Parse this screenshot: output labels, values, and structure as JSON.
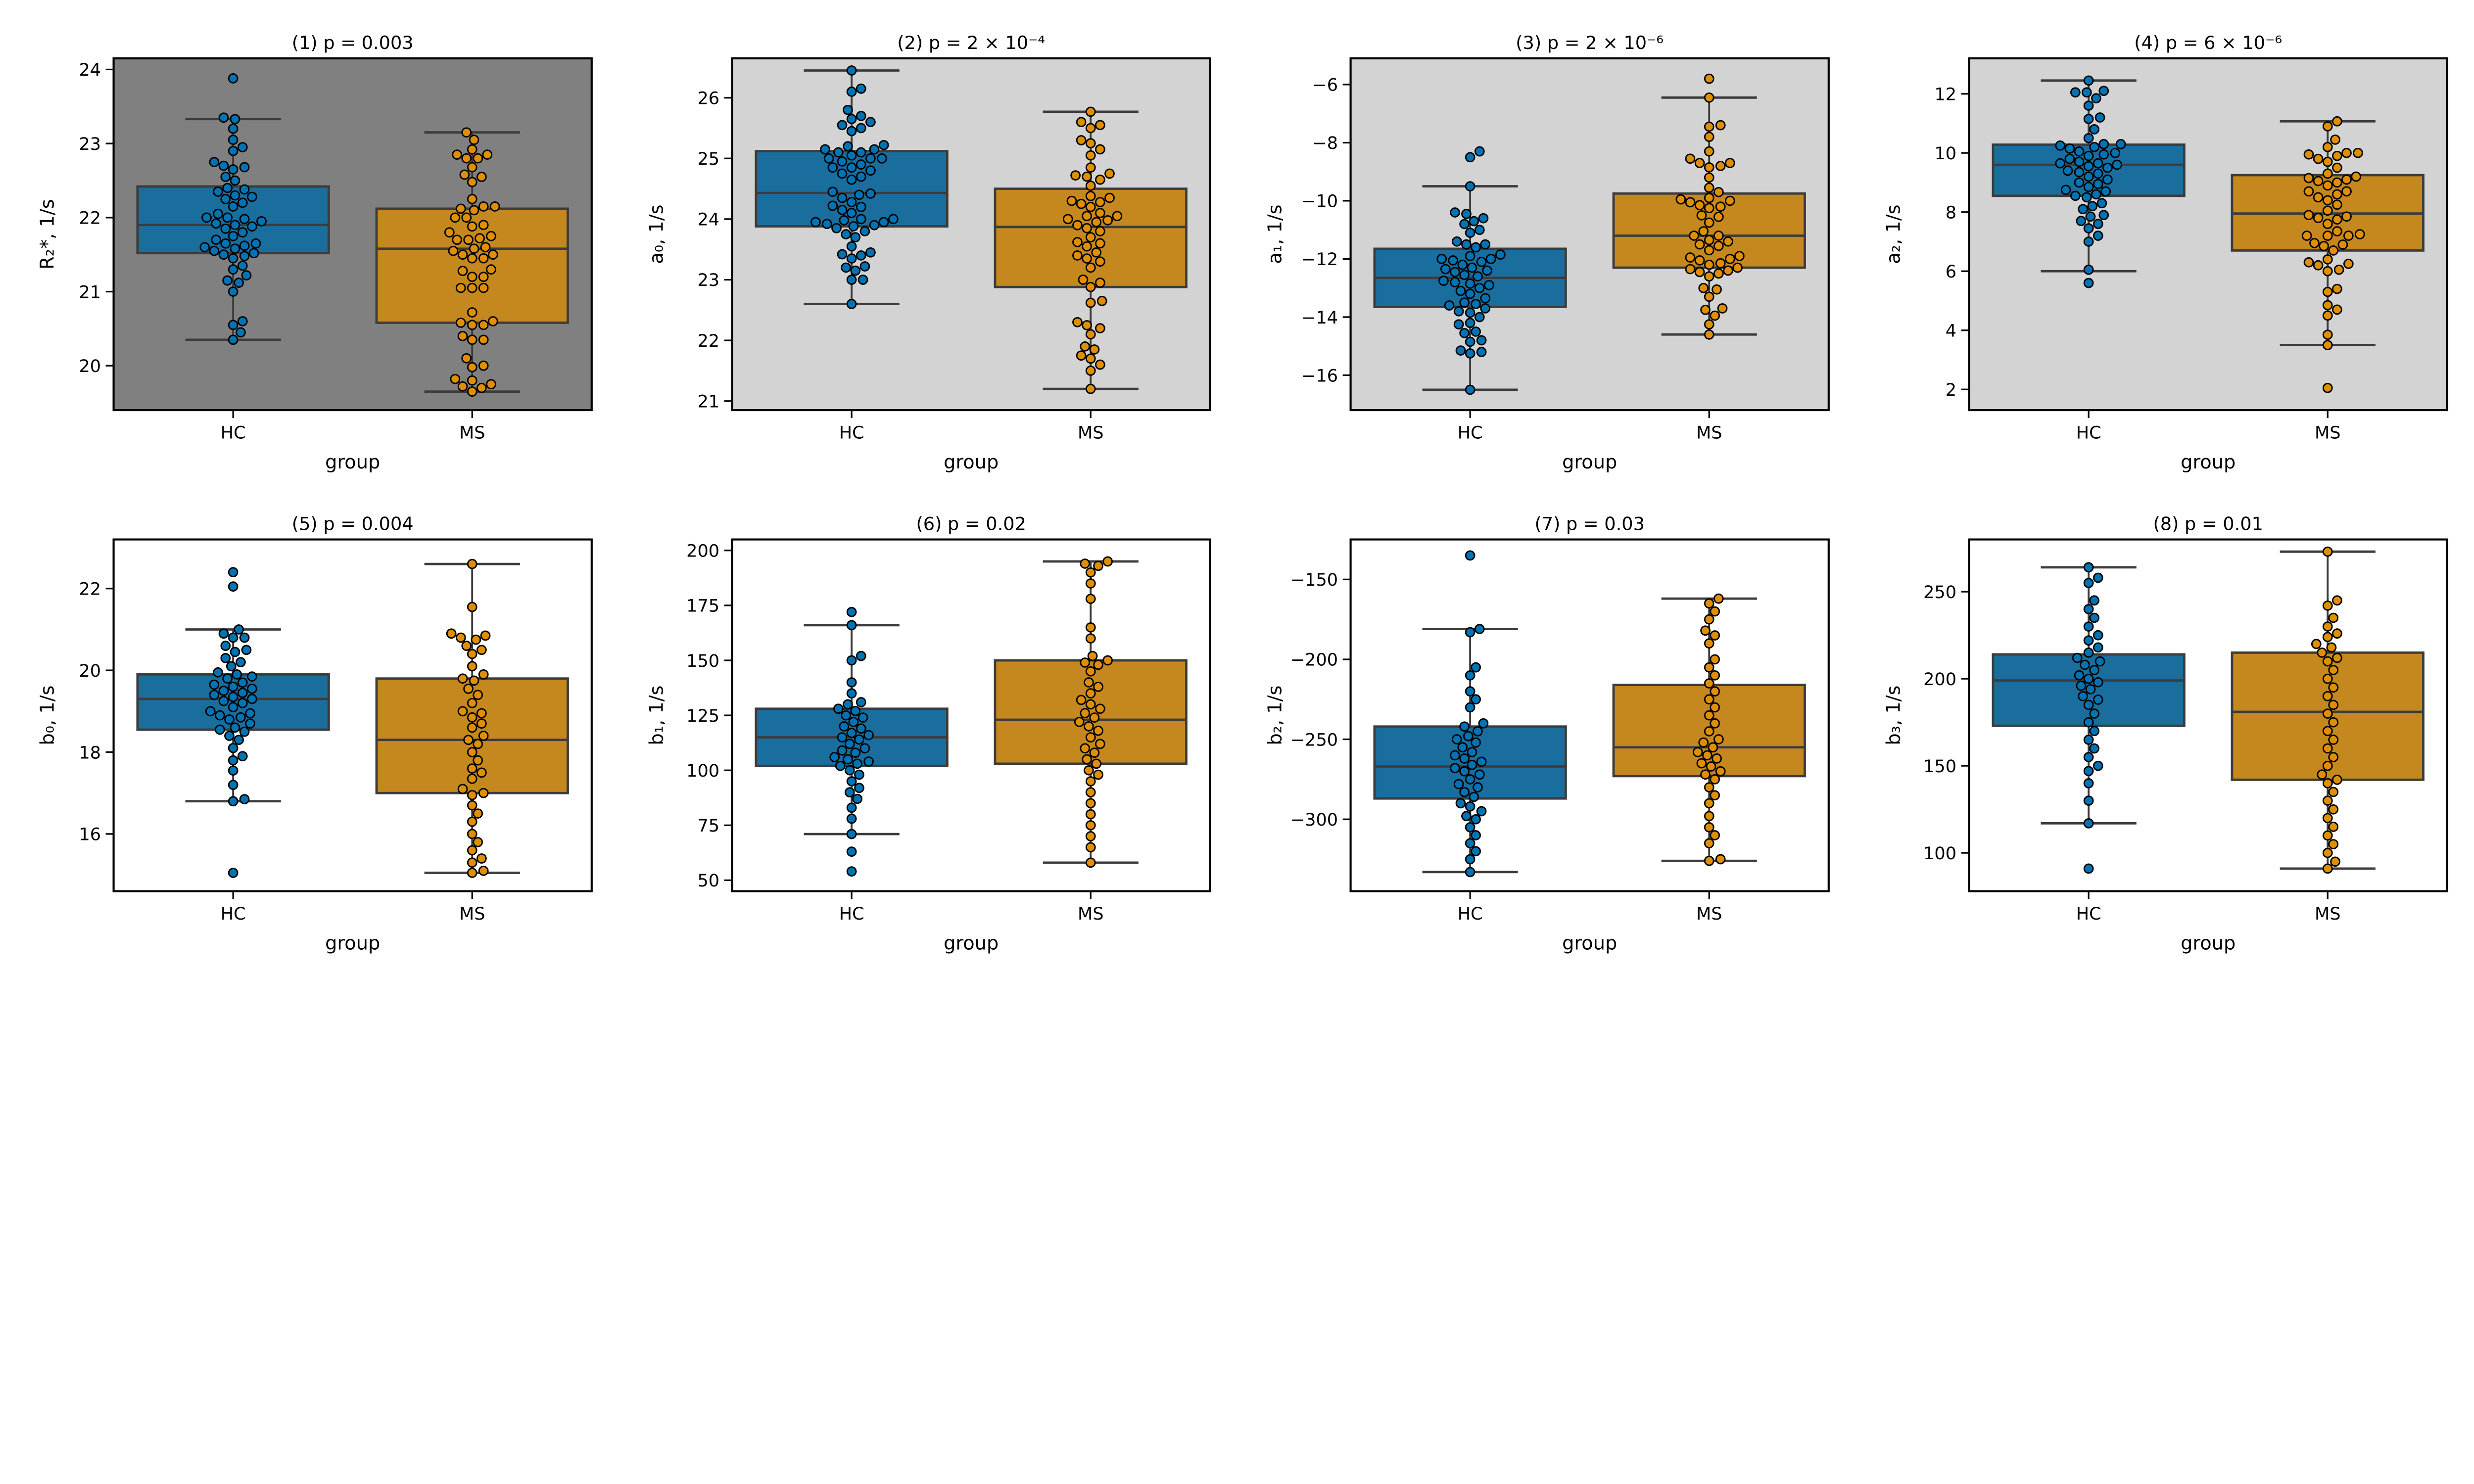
{
  "chart_data": [
    {
      "type": "box",
      "title": "(1) p = 0.003",
      "xlabel": "group",
      "ylabel": "R₂*, 1/s",
      "categories": [
        "HC",
        "MS"
      ],
      "ylim": [
        19.4,
        24.15
      ],
      "yticks": [
        20,
        21,
        22,
        23,
        24
      ],
      "background": "#808080",
      "boxes": [
        {
          "whislo": 20.35,
          "q1": 21.52,
          "med": 21.9,
          "q3": 22.42,
          "whishi": 23.33
        },
        {
          "whislo": 19.65,
          "q1": 20.58,
          "med": 21.58,
          "q3": 22.12,
          "whishi": 23.15
        }
      ],
      "points": [
        [
          23.88,
          23.35,
          23.33,
          23.2,
          23.05,
          22.95,
          22.9,
          22.75,
          22.7,
          22.68,
          22.65,
          22.55,
          22.5,
          22.4,
          22.38,
          22.35,
          22.3,
          22.28,
          22.25,
          22.2,
          22.15,
          22.05,
          22.0,
          22.0,
          21.98,
          21.95,
          21.92,
          21.9,
          21.88,
          21.85,
          21.8,
          21.75,
          21.7,
          21.65,
          21.65,
          21.62,
          21.6,
          21.58,
          21.55,
          21.52,
          21.5,
          21.48,
          21.45,
          21.35,
          21.3,
          21.22,
          21.15,
          21.12,
          21.0,
          20.6,
          20.55,
          20.45,
          20.35
        ],
        [
          23.15,
          23.05,
          22.92,
          22.85,
          22.85,
          22.8,
          22.8,
          22.68,
          22.58,
          22.55,
          22.48,
          22.25,
          22.15,
          22.15,
          22.1,
          22.12,
          22.0,
          22.0,
          21.9,
          21.88,
          21.8,
          21.75,
          21.72,
          21.7,
          21.7,
          21.6,
          21.58,
          21.55,
          21.5,
          21.5,
          21.45,
          21.45,
          21.3,
          21.28,
          21.2,
          21.2,
          21.05,
          21.05,
          21.05,
          20.72,
          20.6,
          20.58,
          20.55,
          20.55,
          20.4,
          20.35,
          20.35,
          20.1,
          20.0,
          19.98,
          19.82,
          19.8,
          19.75,
          19.72,
          19.7,
          19.65
        ]
      ]
    },
    {
      "type": "box",
      "title": "(2) p = 2 × 10⁻⁴",
      "xlabel": "group",
      "ylabel": "a₀, 1/s",
      "categories": [
        "HC",
        "MS"
      ],
      "ylim": [
        20.85,
        26.65
      ],
      "yticks": [
        21,
        22,
        23,
        24,
        25,
        26
      ],
      "background": "#d3d3d3",
      "boxes": [
        {
          "whislo": 22.6,
          "q1": 23.88,
          "med": 24.43,
          "q3": 25.12,
          "whishi": 26.45
        },
        {
          "whislo": 21.2,
          "q1": 22.88,
          "med": 23.87,
          "q3": 24.5,
          "whishi": 25.77
        }
      ],
      "points": [
        [
          26.45,
          26.15,
          26.1,
          25.8,
          25.7,
          25.65,
          25.6,
          25.55,
          25.5,
          25.45,
          25.22,
          25.2,
          25.15,
          25.15,
          25.1,
          25.1,
          25.05,
          25.0,
          25.0,
          25.0,
          24.95,
          24.9,
          24.85,
          24.85,
          24.8,
          24.75,
          24.7,
          24.65,
          24.45,
          24.42,
          24.4,
          24.35,
          24.28,
          24.22,
          24.2,
          24.15,
          24.1,
          24.0,
          24.0,
          23.98,
          23.95,
          23.95,
          23.92,
          23.9,
          23.88,
          23.85,
          23.8,
          23.75,
          23.7,
          23.55,
          23.45,
          23.42,
          23.4,
          23.35,
          23.22,
          23.2,
          23.15,
          23.0,
          23.0,
          22.6
        ],
        [
          25.77,
          25.6,
          25.55,
          25.5,
          25.3,
          25.25,
          25.15,
          25.05,
          24.85,
          24.75,
          24.72,
          24.7,
          24.65,
          24.55,
          24.38,
          24.35,
          24.3,
          24.28,
          24.25,
          24.2,
          24.1,
          24.05,
          24.05,
          24.0,
          23.98,
          23.95,
          23.9,
          23.85,
          23.8,
          23.7,
          23.62,
          23.6,
          23.55,
          23.45,
          23.4,
          23.35,
          23.3,
          23.2,
          23.0,
          22.95,
          22.88,
          22.65,
          22.62,
          22.3,
          22.25,
          22.2,
          22.1,
          21.9,
          21.85,
          21.75,
          21.7,
          21.6,
          21.5,
          21.2
        ]
      ]
    },
    {
      "type": "box",
      "title": "(3) p = 2 × 10⁻⁶",
      "xlabel": "group",
      "ylabel": "a₁, 1/s",
      "categories": [
        "HC",
        "MS"
      ],
      "ylim": [
        -17.2,
        -5.1
      ],
      "yticks": [
        -16,
        -14,
        -12,
        -10,
        -8,
        -6
      ],
      "background": "#d3d3d3",
      "boxes": [
        {
          "whislo": -16.5,
          "q1": -13.65,
          "med": -12.65,
          "q3": -11.65,
          "whishi": -9.5
        },
        {
          "whislo": -14.6,
          "q1": -12.3,
          "med": -11.2,
          "q3": -9.75,
          "whishi": -6.45
        }
      ],
      "points": [
        [
          -8.3,
          -8.5,
          -9.5,
          -10.4,
          -10.45,
          -10.6,
          -10.7,
          -10.8,
          -11.0,
          -11.1,
          -11.4,
          -11.5,
          -11.5,
          -11.6,
          -11.85,
          -11.9,
          -12.0,
          -12.0,
          -12.05,
          -12.1,
          -12.2,
          -12.3,
          -12.35,
          -12.4,
          -12.45,
          -12.55,
          -12.6,
          -12.75,
          -12.8,
          -12.85,
          -12.9,
          -13.0,
          -13.1,
          -13.2,
          -13.35,
          -13.5,
          -13.55,
          -13.6,
          -13.7,
          -13.8,
          -13.85,
          -14.0,
          -14.2,
          -14.25,
          -14.5,
          -14.55,
          -14.8,
          -14.85,
          -15.2,
          -15.25,
          -15.15,
          -16.5
        ],
        [
          -5.8,
          -6.45,
          -7.4,
          -7.45,
          -7.8,
          -8.3,
          -8.55,
          -8.7,
          -8.7,
          -8.85,
          -8.8,
          -9.2,
          -9.55,
          -9.7,
          -9.9,
          -9.95,
          -10.0,
          -10.05,
          -10.15,
          -10.2,
          -10.25,
          -10.5,
          -10.55,
          -10.75,
          -11.05,
          -11.2,
          -11.2,
          -11.35,
          -11.4,
          -11.5,
          -11.55,
          -11.7,
          -11.9,
          -11.95,
          -12.0,
          -12.05,
          -12.15,
          -12.2,
          -12.3,
          -12.35,
          -12.4,
          -12.45,
          -12.5,
          -12.6,
          -13.05,
          -13.0,
          -13.3,
          -13.7,
          -13.75,
          -13.95,
          -14.25,
          -14.6
        ]
      ]
    },
    {
      "type": "box",
      "title": "(4) p = 6 × 10⁻⁶",
      "xlabel": "group",
      "ylabel": "a₂, 1/s",
      "categories": [
        "HC",
        "MS"
      ],
      "ylim": [
        1.3,
        13.2
      ],
      "yticks": [
        2,
        4,
        6,
        8,
        10,
        12
      ],
      "background": "#d3d3d3",
      "boxes": [
        {
          "whislo": 6.0,
          "q1": 8.55,
          "med": 9.6,
          "q3": 10.28,
          "whishi": 12.45
        },
        {
          "whislo": 3.5,
          "q1": 6.7,
          "med": 7.95,
          "q3": 9.25,
          "whishi": 11.07
        }
      ],
      "points": [
        [
          12.45,
          12.1,
          12.05,
          12.05,
          11.85,
          11.6,
          11.2,
          11.15,
          10.8,
          10.5,
          10.3,
          10.3,
          10.25,
          10.2,
          10.15,
          10.05,
          10.0,
          9.95,
          9.9,
          9.8,
          9.7,
          9.65,
          9.65,
          9.6,
          9.55,
          9.5,
          9.4,
          9.35,
          9.3,
          9.2,
          9.1,
          9.0,
          8.95,
          8.85,
          8.75,
          8.7,
          8.6,
          8.55,
          8.5,
          8.3,
          8.2,
          8.1,
          7.9,
          7.85,
          7.7,
          7.6,
          7.45,
          7.2,
          7.0,
          6.05,
          5.6
        ],
        [
          11.07,
          10.9,
          10.45,
          10.2,
          10.0,
          10.0,
          9.95,
          9.9,
          9.8,
          9.7,
          9.5,
          9.3,
          9.2,
          9.15,
          9.1,
          9.05,
          9.0,
          8.9,
          8.7,
          8.7,
          8.6,
          8.5,
          8.4,
          8.25,
          8.05,
          7.9,
          7.85,
          7.8,
          7.75,
          7.6,
          7.35,
          7.25,
          7.2,
          7.2,
          7.2,
          6.95,
          6.9,
          6.85,
          6.7,
          6.4,
          6.3,
          6.25,
          6.2,
          6.05,
          6.0,
          5.4,
          5.3,
          4.85,
          4.7,
          4.5,
          3.85,
          3.5,
          2.05
        ]
      ]
    },
    {
      "type": "box",
      "title": "(5) p = 0.004",
      "xlabel": "group",
      "ylabel": "b₀, 1/s",
      "categories": [
        "HC",
        "MS"
      ],
      "ylim": [
        14.6,
        23.2
      ],
      "yticks": [
        16,
        18,
        20,
        22
      ],
      "background": "#ffffff",
      "boxes": [
        {
          "whislo": 16.8,
          "q1": 18.55,
          "med": 19.3,
          "q3": 19.9,
          "whishi": 21.0
        },
        {
          "whislo": 15.05,
          "q1": 17.0,
          "med": 18.3,
          "q3": 19.8,
          "whishi": 22.6
        }
      ],
      "points": [
        [
          22.4,
          22.05,
          21.0,
          20.9,
          20.8,
          20.8,
          20.6,
          20.5,
          20.45,
          20.3,
          20.2,
          20.1,
          19.95,
          19.9,
          19.85,
          19.8,
          19.7,
          19.65,
          19.6,
          19.55,
          19.5,
          19.45,
          19.4,
          19.35,
          19.3,
          19.25,
          19.2,
          19.1,
          19.0,
          18.95,
          18.9,
          18.85,
          18.8,
          18.7,
          18.6,
          18.55,
          18.5,
          18.4,
          18.3,
          18.1,
          17.9,
          17.8,
          17.55,
          17.2,
          16.85,
          16.8,
          15.05
        ],
        [
          22.6,
          21.55,
          20.9,
          20.85,
          20.8,
          20.75,
          20.6,
          20.5,
          20.4,
          20.1,
          19.9,
          19.8,
          19.75,
          19.55,
          19.4,
          19.2,
          19.0,
          18.95,
          18.85,
          18.7,
          18.6,
          18.4,
          18.3,
          18.2,
          18.0,
          17.8,
          17.6,
          17.5,
          17.35,
          17.1,
          17.0,
          16.95,
          16.7,
          16.5,
          16.3,
          16.0,
          15.8,
          15.6,
          15.4,
          15.3,
          15.1,
          15.05
        ]
      ]
    },
    {
      "type": "box",
      "title": "(6) p = 0.02",
      "xlabel": "group",
      "ylabel": "b₁, 1/s",
      "categories": [
        "HC",
        "MS"
      ],
      "ylim": [
        45,
        205
      ],
      "yticks": [
        50,
        75,
        100,
        125,
        150,
        175,
        200
      ],
      "background": "#ffffff",
      "boxes": [
        {
          "whislo": 71,
          "q1": 102,
          "med": 115,
          "q3": 128,
          "whishi": 166
        },
        {
          "whislo": 58,
          "q1": 103,
          "med": 123,
          "q3": 150,
          "whishi": 195
        }
      ],
      "points": [
        [
          172,
          166,
          152,
          150,
          140,
          135,
          131,
          130,
          128,
          127,
          125,
          124,
          122,
          120,
          119,
          117,
          116,
          115,
          114,
          112,
          110,
          109,
          108,
          106,
          105,
          104,
          103,
          102,
          100,
          98,
          95,
          92,
          90,
          87,
          83,
          78,
          71,
          63,
          54
        ],
        [
          195,
          194,
          193,
          190,
          185,
          178,
          165,
          160,
          152,
          150,
          149,
          148,
          145,
          140,
          138,
          135,
          132,
          130,
          128,
          126,
          124,
          122,
          120,
          118,
          115,
          112,
          110,
          108,
          105,
          103,
          100,
          98,
          95,
          90,
          85,
          80,
          75,
          70,
          65,
          58
        ]
      ]
    },
    {
      "type": "box",
      "title": "(7) p = 0.03",
      "xlabel": "group",
      "ylabel": "b₂, 1/s",
      "categories": [
        "HC",
        "MS"
      ],
      "ylim": [
        -345,
        -125
      ],
      "yticks": [
        -300,
        -250,
        -200,
        -150
      ],
      "background": "#ffffff",
      "boxes": [
        {
          "whislo": -333,
          "q1": -287,
          "med": -267,
          "q3": -242,
          "whishi": -181
        },
        {
          "whislo": -326,
          "q1": -273,
          "med": -255,
          "q3": -216,
          "whishi": -162
        }
      ],
      "points": [
        [
          -135,
          -181,
          -183,
          -205,
          -210,
          -220,
          -225,
          -230,
          -240,
          -242,
          -245,
          -248,
          -250,
          -252,
          -255,
          -258,
          -260,
          -262,
          -264,
          -266,
          -268,
          -270,
          -272,
          -275,
          -278,
          -280,
          -283,
          -286,
          -290,
          -292,
          -295,
          -298,
          -300,
          -305,
          -310,
          -315,
          -320,
          -325,
          -333
        ],
        [
          -162,
          -165,
          -170,
          -175,
          -182,
          -185,
          -190,
          -200,
          -205,
          -210,
          -215,
          -220,
          -225,
          -230,
          -235,
          -240,
          -245,
          -250,
          -252,
          -255,
          -258,
          -260,
          -262,
          -265,
          -267,
          -270,
          -272,
          -275,
          -280,
          -285,
          -290,
          -298,
          -305,
          -310,
          -315,
          -325,
          -326
        ]
      ]
    },
    {
      "type": "box",
      "title": "(8) p = 0.01",
      "xlabel": "group",
      "ylabel": "b₃, 1/s",
      "categories": [
        "HC",
        "MS"
      ],
      "ylim": [
        78,
        280
      ],
      "yticks": [
        100,
        150,
        200,
        250
      ],
      "background": "#ffffff",
      "boxes": [
        {
          "whislo": 117,
          "q1": 173,
          "med": 199,
          "q3": 214,
          "whishi": 264
        },
        {
          "whislo": 91,
          "q1": 142,
          "med": 181,
          "q3": 215,
          "whishi": 273
        }
      ],
      "points": [
        [
          264,
          258,
          255,
          245,
          240,
          235,
          230,
          225,
          222,
          218,
          215,
          212,
          210,
          208,
          205,
          202,
          200,
          198,
          196,
          194,
          190,
          188,
          185,
          180,
          175,
          170,
          165,
          160,
          155,
          150,
          147,
          140,
          130,
          117,
          91
        ],
        [
          273,
          245,
          242,
          235,
          230,
          226,
          224,
          220,
          218,
          215,
          212,
          210,
          205,
          200,
          195,
          190,
          185,
          180,
          175,
          170,
          165,
          160,
          155,
          150,
          145,
          142,
          140,
          135,
          130,
          125,
          120,
          115,
          110,
          105,
          100,
          95,
          91
        ]
      ]
    }
  ],
  "colors": {
    "HC_box": "#1a6e9e",
    "HC_point": "#0173b2",
    "MS_box": "#c4881f",
    "MS_point": "#de8f05",
    "line": "#3c3c3c"
  }
}
